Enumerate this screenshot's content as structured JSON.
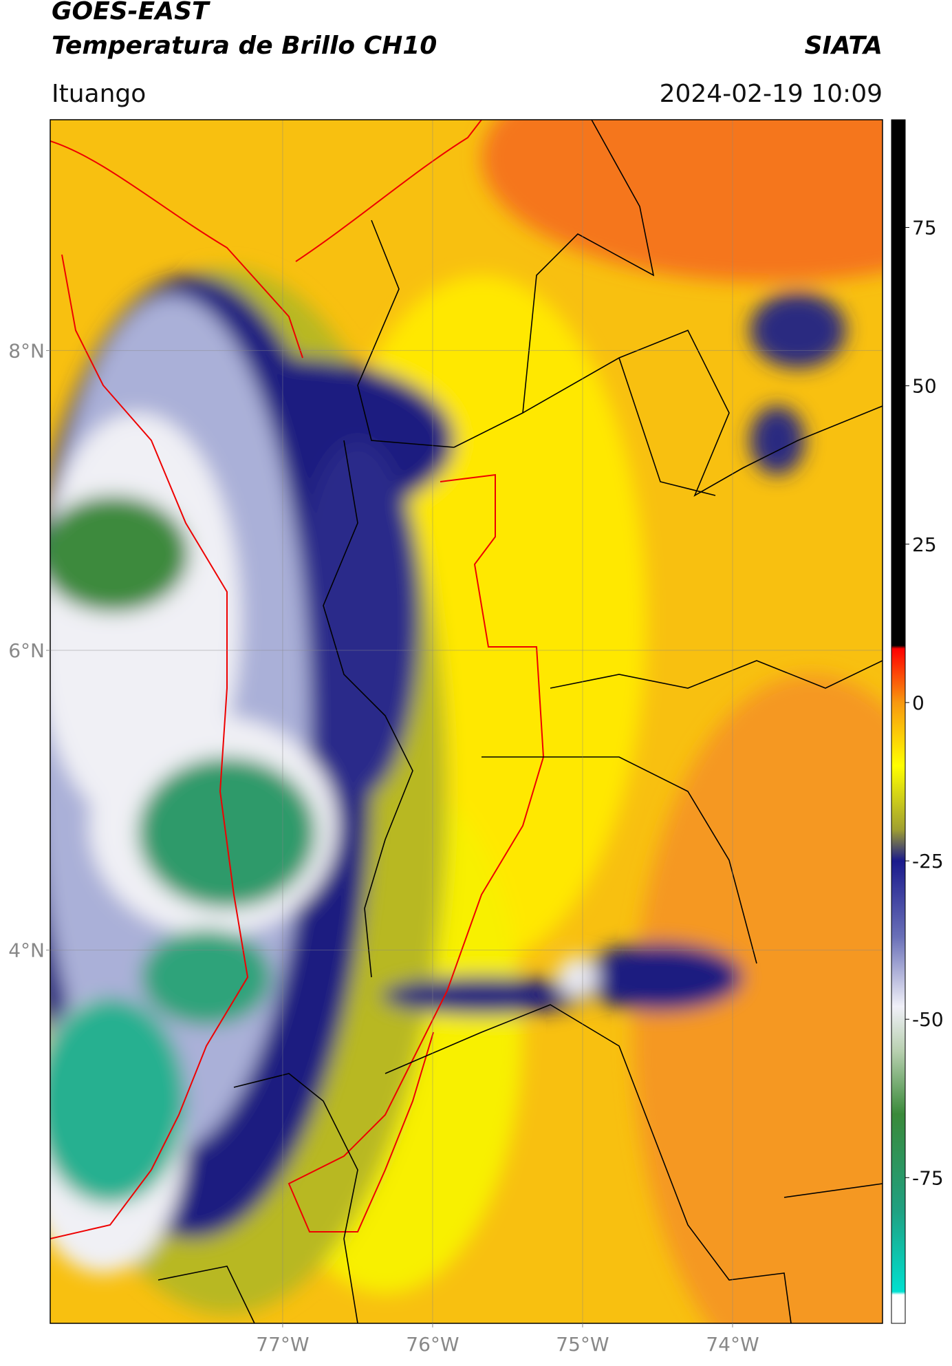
{
  "header": {
    "title": "GOES-EAST",
    "subtitle": "Temperatura de Brillo CH10",
    "brand": "SIATA",
    "location": "Ituango",
    "datetime": "2024-02-19 10:09"
  },
  "map": {
    "type": "map",
    "xlim": [
      -78.55,
      -73.0
    ],
    "ylim": [
      1.51,
      9.54
    ],
    "xticks": [
      {
        "value": -77,
        "label": "77°W"
      },
      {
        "value": -76,
        "label": "76°W"
      },
      {
        "value": -75,
        "label": "75°W"
      },
      {
        "value": -74,
        "label": "74°W"
      }
    ],
    "yticks": [
      {
        "value": 4,
        "label": "4°N"
      },
      {
        "value": 6,
        "label": "6°N"
      },
      {
        "value": 8,
        "label": "8°N"
      }
    ],
    "grid": true
  },
  "colorbar": {
    "lim": [
      -98,
      92
    ],
    "ticks": [
      -75,
      -50,
      -25,
      0,
      25,
      50,
      75
    ],
    "colormap": [
      {
        "value": 92,
        "color": "#000000"
      },
      {
        "value": 9,
        "color": "#000000"
      },
      {
        "value": 8.5,
        "color": "#ff0000"
      },
      {
        "value": 0,
        "color": "#f8980f"
      },
      {
        "value": -10,
        "color": "#ffff00"
      },
      {
        "value": -20,
        "color": "#a0a030"
      },
      {
        "value": -25,
        "color": "#1a1a8c"
      },
      {
        "value": -37,
        "color": "#6a70b8"
      },
      {
        "value": -48,
        "color": "#f0f0f8"
      },
      {
        "value": -55,
        "color": "#b8d0b0"
      },
      {
        "value": -65,
        "color": "#3a8a3a"
      },
      {
        "value": -80,
        "color": "#20a080"
      },
      {
        "value": -93,
        "color": "#00e0d0"
      },
      {
        "value": -93.5,
        "color": "#ffffff"
      },
      {
        "value": -98,
        "color": "#ffffff"
      }
    ]
  }
}
